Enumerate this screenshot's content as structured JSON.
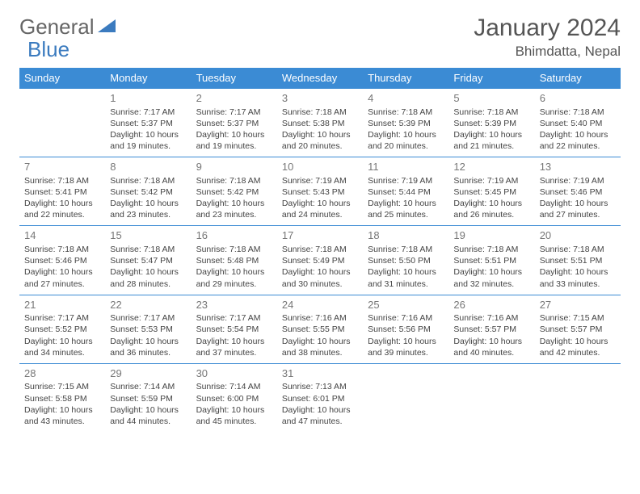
{
  "logo": {
    "general": "General",
    "blue": "Blue"
  },
  "title": "January 2024",
  "location": "Bhimdatta, Nepal",
  "colors": {
    "header_bg": "#3b8bd4",
    "header_text": "#ffffff",
    "border": "#3b8bd4",
    "text": "#444444",
    "daynum": "#777777"
  },
  "daynames": [
    "Sunday",
    "Monday",
    "Tuesday",
    "Wednesday",
    "Thursday",
    "Friday",
    "Saturday"
  ],
  "weeks": [
    [
      null,
      {
        "n": "1",
        "sr": "Sunrise: 7:17 AM",
        "ss": "Sunset: 5:37 PM",
        "dl": "Daylight: 10 hours and 19 minutes."
      },
      {
        "n": "2",
        "sr": "Sunrise: 7:17 AM",
        "ss": "Sunset: 5:37 PM",
        "dl": "Daylight: 10 hours and 19 minutes."
      },
      {
        "n": "3",
        "sr": "Sunrise: 7:18 AM",
        "ss": "Sunset: 5:38 PM",
        "dl": "Daylight: 10 hours and 20 minutes."
      },
      {
        "n": "4",
        "sr": "Sunrise: 7:18 AM",
        "ss": "Sunset: 5:39 PM",
        "dl": "Daylight: 10 hours and 20 minutes."
      },
      {
        "n": "5",
        "sr": "Sunrise: 7:18 AM",
        "ss": "Sunset: 5:39 PM",
        "dl": "Daylight: 10 hours and 21 minutes."
      },
      {
        "n": "6",
        "sr": "Sunrise: 7:18 AM",
        "ss": "Sunset: 5:40 PM",
        "dl": "Daylight: 10 hours and 22 minutes."
      }
    ],
    [
      {
        "n": "7",
        "sr": "Sunrise: 7:18 AM",
        "ss": "Sunset: 5:41 PM",
        "dl": "Daylight: 10 hours and 22 minutes."
      },
      {
        "n": "8",
        "sr": "Sunrise: 7:18 AM",
        "ss": "Sunset: 5:42 PM",
        "dl": "Daylight: 10 hours and 23 minutes."
      },
      {
        "n": "9",
        "sr": "Sunrise: 7:18 AM",
        "ss": "Sunset: 5:42 PM",
        "dl": "Daylight: 10 hours and 23 minutes."
      },
      {
        "n": "10",
        "sr": "Sunrise: 7:19 AM",
        "ss": "Sunset: 5:43 PM",
        "dl": "Daylight: 10 hours and 24 minutes."
      },
      {
        "n": "11",
        "sr": "Sunrise: 7:19 AM",
        "ss": "Sunset: 5:44 PM",
        "dl": "Daylight: 10 hours and 25 minutes."
      },
      {
        "n": "12",
        "sr": "Sunrise: 7:19 AM",
        "ss": "Sunset: 5:45 PM",
        "dl": "Daylight: 10 hours and 26 minutes."
      },
      {
        "n": "13",
        "sr": "Sunrise: 7:19 AM",
        "ss": "Sunset: 5:46 PM",
        "dl": "Daylight: 10 hours and 27 minutes."
      }
    ],
    [
      {
        "n": "14",
        "sr": "Sunrise: 7:18 AM",
        "ss": "Sunset: 5:46 PM",
        "dl": "Daylight: 10 hours and 27 minutes."
      },
      {
        "n": "15",
        "sr": "Sunrise: 7:18 AM",
        "ss": "Sunset: 5:47 PM",
        "dl": "Daylight: 10 hours and 28 minutes."
      },
      {
        "n": "16",
        "sr": "Sunrise: 7:18 AM",
        "ss": "Sunset: 5:48 PM",
        "dl": "Daylight: 10 hours and 29 minutes."
      },
      {
        "n": "17",
        "sr": "Sunrise: 7:18 AM",
        "ss": "Sunset: 5:49 PM",
        "dl": "Daylight: 10 hours and 30 minutes."
      },
      {
        "n": "18",
        "sr": "Sunrise: 7:18 AM",
        "ss": "Sunset: 5:50 PM",
        "dl": "Daylight: 10 hours and 31 minutes."
      },
      {
        "n": "19",
        "sr": "Sunrise: 7:18 AM",
        "ss": "Sunset: 5:51 PM",
        "dl": "Daylight: 10 hours and 32 minutes."
      },
      {
        "n": "20",
        "sr": "Sunrise: 7:18 AM",
        "ss": "Sunset: 5:51 PM",
        "dl": "Daylight: 10 hours and 33 minutes."
      }
    ],
    [
      {
        "n": "21",
        "sr": "Sunrise: 7:17 AM",
        "ss": "Sunset: 5:52 PM",
        "dl": "Daylight: 10 hours and 34 minutes."
      },
      {
        "n": "22",
        "sr": "Sunrise: 7:17 AM",
        "ss": "Sunset: 5:53 PM",
        "dl": "Daylight: 10 hours and 36 minutes."
      },
      {
        "n": "23",
        "sr": "Sunrise: 7:17 AM",
        "ss": "Sunset: 5:54 PM",
        "dl": "Daylight: 10 hours and 37 minutes."
      },
      {
        "n": "24",
        "sr": "Sunrise: 7:16 AM",
        "ss": "Sunset: 5:55 PM",
        "dl": "Daylight: 10 hours and 38 minutes."
      },
      {
        "n": "25",
        "sr": "Sunrise: 7:16 AM",
        "ss": "Sunset: 5:56 PM",
        "dl": "Daylight: 10 hours and 39 minutes."
      },
      {
        "n": "26",
        "sr": "Sunrise: 7:16 AM",
        "ss": "Sunset: 5:57 PM",
        "dl": "Daylight: 10 hours and 40 minutes."
      },
      {
        "n": "27",
        "sr": "Sunrise: 7:15 AM",
        "ss": "Sunset: 5:57 PM",
        "dl": "Daylight: 10 hours and 42 minutes."
      }
    ],
    [
      {
        "n": "28",
        "sr": "Sunrise: 7:15 AM",
        "ss": "Sunset: 5:58 PM",
        "dl": "Daylight: 10 hours and 43 minutes."
      },
      {
        "n": "29",
        "sr": "Sunrise: 7:14 AM",
        "ss": "Sunset: 5:59 PM",
        "dl": "Daylight: 10 hours and 44 minutes."
      },
      {
        "n": "30",
        "sr": "Sunrise: 7:14 AM",
        "ss": "Sunset: 6:00 PM",
        "dl": "Daylight: 10 hours and 45 minutes."
      },
      {
        "n": "31",
        "sr": "Sunrise: 7:13 AM",
        "ss": "Sunset: 6:01 PM",
        "dl": "Daylight: 10 hours and 47 minutes."
      },
      null,
      null,
      null
    ]
  ]
}
